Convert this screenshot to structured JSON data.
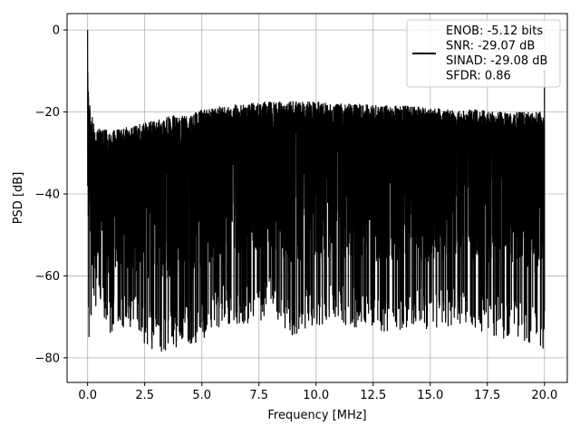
{
  "chart_data": {
    "type": "line",
    "title": "",
    "xlabel": "Frequency [MHz]",
    "ylabel": "PSD [dB]",
    "xlim": [
      -0.9,
      21.0
    ],
    "ylim": [
      -86,
      4
    ],
    "xticks": [
      0.0,
      2.5,
      5.0,
      7.5,
      10.0,
      12.5,
      15.0,
      17.5,
      20.0
    ],
    "xtick_labels": [
      "0.0",
      "2.5",
      "5.0",
      "7.5",
      "10.0",
      "12.5",
      "15.0",
      "17.5",
      "20.0"
    ],
    "yticks": [
      0,
      -20,
      -40,
      -60,
      -80
    ],
    "ytick_labels": [
      "0",
      "−20",
      "−40",
      "−60",
      "−80"
    ],
    "grid": true,
    "legend_position": "top-right",
    "series": [
      {
        "name": "",
        "color": "#000000",
        "description_envelope": {
          "x": [
            0.0,
            0.05,
            0.3,
            1.0,
            2.0,
            3.0,
            4.0,
            5.0,
            6.0,
            7.0,
            8.0,
            9.0,
            10.0,
            11.0,
            12.0,
            13.0,
            14.0,
            15.0,
            16.0,
            17.0,
            18.0,
            19.0,
            20.0
          ],
          "upper": [
            0.0,
            -17.0,
            -24.0,
            -24.5,
            -23.5,
            -22.0,
            -20.5,
            -19.5,
            -18.5,
            -18.0,
            -17.5,
            -17.5,
            -17.5,
            -18.0,
            -18.0,
            -18.5,
            -18.5,
            -19.0,
            -19.5,
            -19.5,
            -20.0,
            -20.0,
            -20.0
          ],
          "lower": [
            -52,
            -80,
            -67,
            -74,
            -73,
            -80,
            -77,
            -76,
            -72,
            -72,
            -70,
            -75,
            -72,
            -72,
            -73,
            -74,
            -73,
            -73,
            -72,
            -73,
            -75,
            -76,
            -78
          ]
        },
        "endpoint_spike_y": -10.0
      }
    ],
    "legend": {
      "lines": [
        "ENOB: -5.12 bits",
        "SNR: -29.07 dB",
        "SINAD: -29.08 dB",
        "SFDR: 0.86"
      ]
    }
  }
}
